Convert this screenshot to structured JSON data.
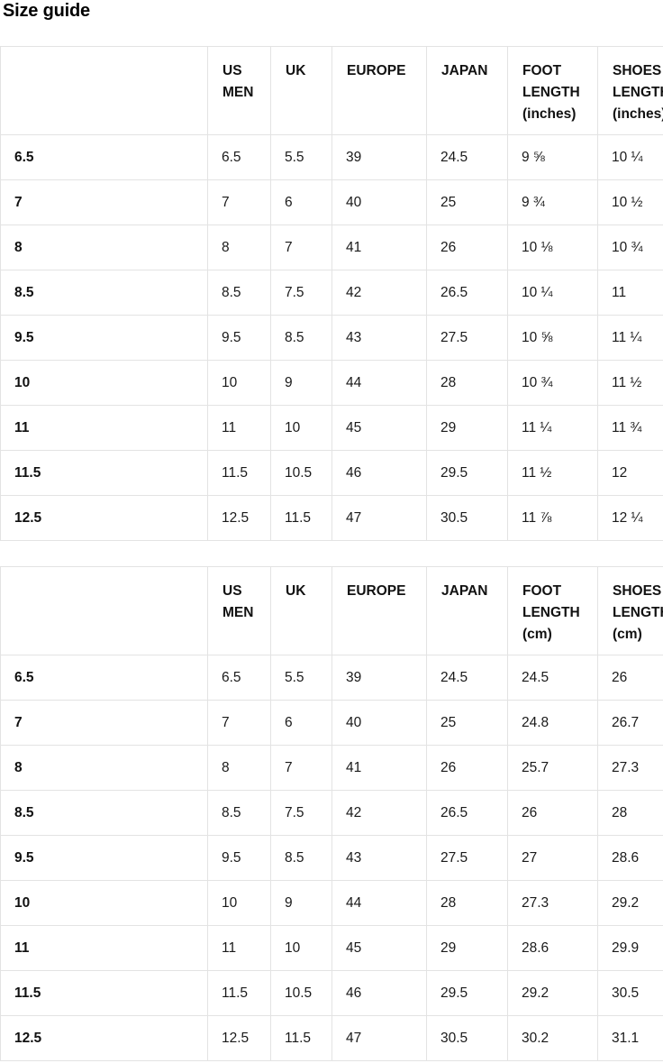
{
  "page": {
    "title": "Size guide"
  },
  "colors": {
    "table_border": "#e3e3e3",
    "heading_text": "#000000",
    "cell_text": "#1a1a1a"
  },
  "tables": [
    {
      "id": "inches",
      "columns": [
        "",
        "US MEN",
        "UK",
        "EUROPE",
        "JAPAN",
        "FOOT LENGTH (inches)",
        "SHOES LENGTH (inches)"
      ],
      "rows": [
        {
          "label": "6.5",
          "cells": [
            "6.5",
            "5.5",
            "39",
            "24.5",
            "9 ⅝",
            "10 ¼"
          ]
        },
        {
          "label": "7",
          "cells": [
            "7",
            "6",
            "40",
            "25",
            "9 ¾",
            "10 ½"
          ]
        },
        {
          "label": "8",
          "cells": [
            "8",
            "7",
            "41",
            "26",
            "10 ⅛",
            "10 ¾"
          ]
        },
        {
          "label": "8.5",
          "cells": [
            "8.5",
            "7.5",
            "42",
            "26.5",
            "10 ¼",
            "11"
          ]
        },
        {
          "label": "9.5",
          "cells": [
            "9.5",
            "8.5",
            "43",
            "27.5",
            "10 ⅝",
            "11 ¼"
          ]
        },
        {
          "label": "10",
          "cells": [
            "10",
            "9",
            "44",
            "28",
            "10 ¾",
            "11 ½"
          ]
        },
        {
          "label": "11",
          "cells": [
            "11",
            "10",
            "45",
            "29",
            "11 ¼",
            "11 ¾"
          ]
        },
        {
          "label": "11.5",
          "cells": [
            "11.5",
            "10.5",
            "46",
            "29.5",
            "11 ½",
            "12"
          ]
        },
        {
          "label": "12.5",
          "cells": [
            "12.5",
            "11.5",
            "47",
            "30.5",
            "11 ⅞",
            "12 ¼"
          ]
        }
      ]
    },
    {
      "id": "cm",
      "columns": [
        "",
        "US MEN",
        "UK",
        "EUROPE",
        "JAPAN",
        "FOOT LENGTH (cm)",
        "SHOES LENGTH (cm)"
      ],
      "rows": [
        {
          "label": "6.5",
          "cells": [
            "6.5",
            "5.5",
            "39",
            "24.5",
            "24.5",
            "26"
          ]
        },
        {
          "label": "7",
          "cells": [
            "7",
            "6",
            "40",
            "25",
            "24.8",
            "26.7"
          ]
        },
        {
          "label": "8",
          "cells": [
            "8",
            "7",
            "41",
            "26",
            "25.7",
            "27.3"
          ]
        },
        {
          "label": "8.5",
          "cells": [
            "8.5",
            "7.5",
            "42",
            "26.5",
            "26",
            "28"
          ]
        },
        {
          "label": "9.5",
          "cells": [
            "9.5",
            "8.5",
            "43",
            "27.5",
            "27",
            "28.6"
          ]
        },
        {
          "label": "10",
          "cells": [
            "10",
            "9",
            "44",
            "28",
            "27.3",
            "29.2"
          ]
        },
        {
          "label": "11",
          "cells": [
            "11",
            "10",
            "45",
            "29",
            "28.6",
            "29.9"
          ]
        },
        {
          "label": "11.5",
          "cells": [
            "11.5",
            "10.5",
            "46",
            "29.5",
            "29.2",
            "30.5"
          ]
        },
        {
          "label": "12.5",
          "cells": [
            "12.5",
            "11.5",
            "47",
            "30.5",
            "30.2",
            "31.1"
          ]
        }
      ]
    }
  ]
}
